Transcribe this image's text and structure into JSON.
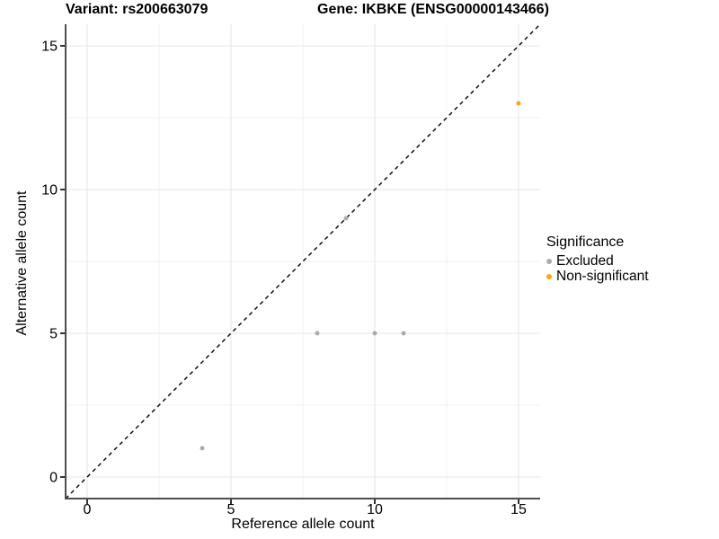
{
  "titles": {
    "variant": "Variant: rs200663079",
    "gene": "Gene: IKBKE (ENSG00000143466)"
  },
  "chart_data": {
    "type": "scatter",
    "title": "Variant: rs200663079 | Gene: IKBKE (ENSG00000143466)",
    "xlabel": "Reference allele count",
    "ylabel": "Alternative allele count",
    "xlim": [
      -0.75,
      15.75
    ],
    "ylim": [
      -0.75,
      15.75
    ],
    "x_ticks": [
      0,
      5,
      10,
      15
    ],
    "y_ticks": [
      0,
      5,
      10,
      15
    ],
    "x_minor_ticks": [
      2.5,
      7.5,
      12.5
    ],
    "y_minor_ticks": [
      2.5,
      7.5,
      12.5
    ],
    "grid": "major and minor gridlines, white panel background",
    "legend_title": "Significance",
    "legend_position": "right",
    "identity_line": {
      "type": "y=x",
      "style": "dashed",
      "color": "#000000"
    },
    "series": [
      {
        "name": "Excluded",
        "color": "#ABABAB",
        "points": [
          [
            4,
            1
          ],
          [
            8,
            5
          ],
          [
            9,
            9
          ],
          [
            10,
            5
          ],
          [
            11,
            5
          ]
        ]
      },
      {
        "name": "Non-significant",
        "color": "#FFA415",
        "points": [
          [
            15,
            13
          ]
        ]
      }
    ]
  },
  "colors": {
    "grid_major": "#E4E4E4",
    "grid_minor": "#F1F1F1",
    "axis_line": "#4D4D4D",
    "tick_mark": "#333333",
    "text": "#000000"
  }
}
